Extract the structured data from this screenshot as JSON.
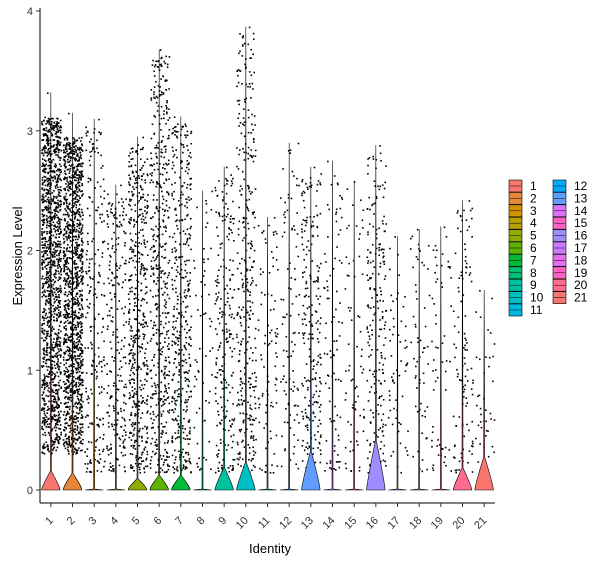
{
  "chart_data": {
    "type": "violin",
    "xlabel": "Identity",
    "ylabel": "Expression Level",
    "ylim": [
      0,
      4
    ],
    "yticks": [
      "0",
      "1",
      "2",
      "3",
      "4"
    ],
    "categories": [
      "1",
      "2",
      "3",
      "4",
      "5",
      "6",
      "7",
      "8",
      "9",
      "10",
      "11",
      "12",
      "13",
      "14",
      "15",
      "16",
      "17",
      "18",
      "19",
      "20",
      "21"
    ],
    "colors": [
      "#F8766D",
      "#E58700",
      "#C99800",
      "#A3A500",
      "#6BB100",
      "#00BA38",
      "#00BF7D",
      "#00C0AF",
      "#00BCD8",
      "#00B0F6",
      "#619CFF",
      "#B983FF",
      "#E76BF3",
      "#FD61D1",
      "#FF67A4",
      "#F8766D",
      "#E58700",
      "#C99800",
      "#A3A500",
      "#6BB100",
      "#00BA38"
    ],
    "legend_colors": [
      "#F8766D",
      "#E58700",
      "#C99800",
      "#A3A500",
      "#6BB100",
      "#00BA38",
      "#00BF7D",
      "#00C0AF",
      "#00BCD8",
      "#00B0F6",
      "#619CFF",
      "#B983FF",
      "#E76BF3",
      "#FD61D1",
      "#FF67A4",
      "#F8766D",
      "#E58700",
      "#C99800",
      "#A3A500",
      "#6BB100",
      "#00BA38"
    ],
    "violin_colors": [
      "#F8766D",
      "#E8863A",
      "#D39200",
      "#B79F00",
      "#93AA00",
      "#5EB300",
      "#00BA38",
      "#00BF74",
      "#00C19F",
      "#00BFC4",
      "#00B9E3",
      "#00ADFA",
      "#619CFF",
      "#DB72FB",
      "#FF61C3",
      "#9F8CFF",
      "#C77CFF",
      "#E76BF3",
      "#FF61C3",
      "#FF6C91",
      "#F8766D"
    ],
    "max_values": [
      3.32,
      3.15,
      3.1,
      2.55,
      2.95,
      3.68,
      3.12,
      2.5,
      2.7,
      3.87,
      2.28,
      2.9,
      2.7,
      2.75,
      2.58,
      2.88,
      2.12,
      2.18,
      2.2,
      2.42,
      1.67
    ],
    "point_density": [
      1300,
      1300,
      220,
      240,
      500,
      500,
      420,
      60,
      230,
      350,
      90,
      100,
      230,
      90,
      70,
      210,
      60,
      60,
      60,
      110,
      40
    ],
    "zero_bulge": [
      0.12,
      0.1,
      0,
      0,
      0.05,
      0.08,
      0.08,
      0,
      0.15,
      0.2,
      0,
      0,
      0.3,
      0,
      0,
      0.4,
      0,
      0,
      0,
      0.15,
      0.25
    ],
    "legend": {
      "columns": [
        [
          "1",
          "2",
          "3",
          "4",
          "5",
          "6",
          "7",
          "8",
          "9",
          "10",
          "11"
        ],
        [
          "12",
          "13",
          "14",
          "15",
          "16",
          "17",
          "18",
          "19",
          "20",
          "21"
        ]
      ]
    }
  }
}
